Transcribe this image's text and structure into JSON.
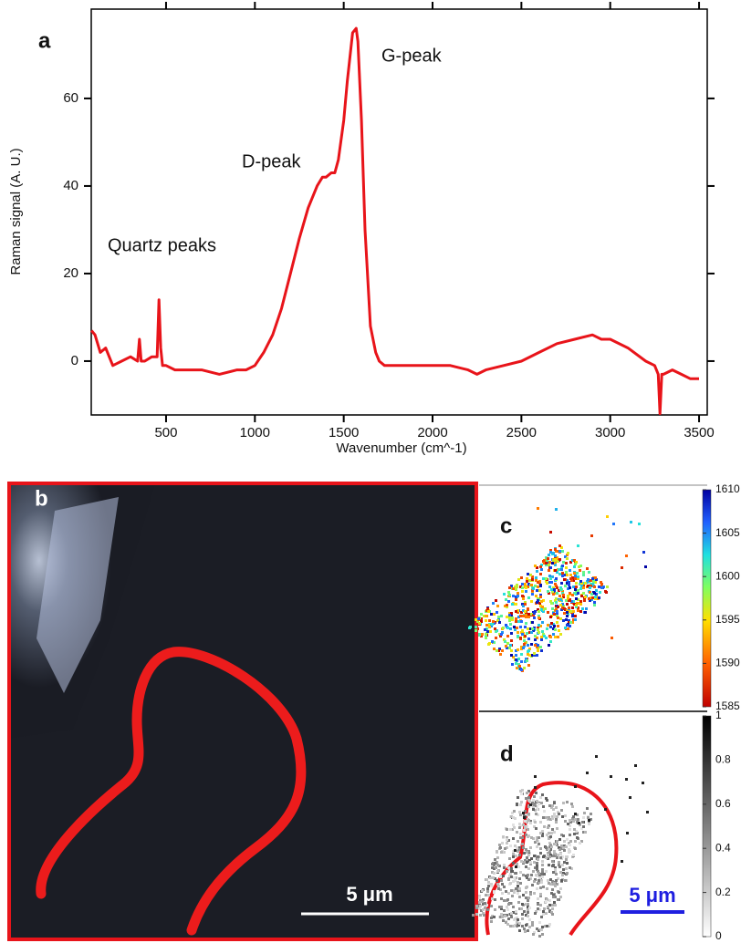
{
  "chart_data": [
    {
      "type": "line",
      "label": "a",
      "xlabel": "Wavenumber (cm^-1)",
      "ylabel": "Raman signal (A. U.)",
      "x": [
        80,
        100,
        130,
        160,
        200,
        250,
        300,
        340,
        350,
        360,
        380,
        420,
        450,
        460,
        470,
        480,
        500,
        550,
        600,
        700,
        800,
        900,
        950,
        1000,
        1050,
        1100,
        1150,
        1200,
        1250,
        1300,
        1350,
        1380,
        1400,
        1430,
        1450,
        1470,
        1500,
        1520,
        1550,
        1570,
        1580,
        1600,
        1620,
        1650,
        1680,
        1700,
        1730,
        1750,
        1800,
        1900,
        2000,
        2100,
        2200,
        2250,
        2300,
        2400,
        2500,
        2600,
        2700,
        2800,
        2900,
        2950,
        3000,
        3100,
        3200,
        3250,
        3270,
        3280,
        3290,
        3300,
        3350,
        3400,
        3450,
        3500
      ],
      "series": [
        {
          "color": "#e8141a",
          "values": [
            7,
            6,
            2,
            3,
            -1,
            0,
            1,
            0,
            5,
            0,
            0,
            1,
            1,
            14,
            3,
            -1,
            -1,
            -2,
            -2,
            -2,
            -3,
            -2,
            -2,
            -1,
            2,
            6,
            12,
            20,
            28,
            35,
            40,
            42,
            42,
            43,
            43,
            46,
            55,
            64,
            75,
            76,
            73,
            55,
            30,
            8,
            2,
            0,
            -1,
            -1,
            -1,
            -1,
            -1,
            -1,
            -2,
            -3,
            -2,
            -1,
            0,
            2,
            4,
            5,
            6,
            5,
            5,
            3,
            0,
            -1,
            -3,
            -12,
            -3,
            -3,
            -2,
            -3,
            -4,
            -4
          ]
        }
      ],
      "xlim": [
        79,
        3546
      ],
      "ylim": [
        -12.3,
        80.4
      ],
      "xticks": [
        500,
        1000,
        1500,
        2000,
        2500,
        3000,
        3500
      ],
      "yticks": [
        0,
        20,
        40,
        60
      ],
      "annotations": [
        "Quartz peaks",
        "D-peak",
        "G-peak"
      ]
    },
    {
      "type": "image",
      "label": "b",
      "scale_bar": "5 μm"
    },
    {
      "type": "map",
      "label": "c",
      "clim": [
        1585,
        1610
      ],
      "cticks": [
        1585,
        1590,
        1595,
        1600,
        1605,
        1610
      ]
    },
    {
      "type": "map",
      "label": "d",
      "clim": [
        0,
        1
      ],
      "cticks": [
        0,
        0.2,
        0.4,
        0.6,
        0.8,
        1
      ],
      "scale_bar": "5 μm"
    }
  ]
}
